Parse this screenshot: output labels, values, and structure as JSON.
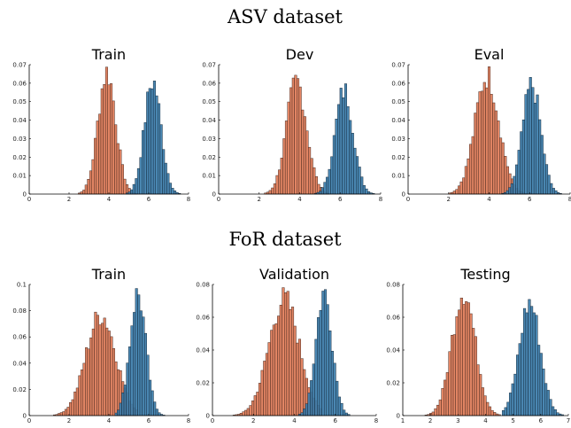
{
  "groups": [
    {
      "title": "ASV dataset"
    },
    {
      "title": "FoR dataset"
    }
  ],
  "colors": {
    "series_a": "#e07b57",
    "series_b": "#3b7dab"
  },
  "chart_data": [
    {
      "type": "bar",
      "group": "ASV dataset",
      "title": "Train",
      "xlim": [
        0,
        8
      ],
      "ylim": [
        0,
        0.07
      ],
      "xticks": [
        0,
        2,
        4,
        6,
        8
      ],
      "yticks": [
        0,
        0.01,
        0.02,
        0.03,
        0.04,
        0.05,
        0.06,
        0.07
      ],
      "series": [
        {
          "mean": 3.9,
          "sd": 0.45,
          "peak": 0.066,
          "range": [
            2.0,
            5.6
          ]
        },
        {
          "mean": 6.2,
          "sd": 0.42,
          "peak": 0.061,
          "range": [
            4.4,
            7.6
          ]
        }
      ]
    },
    {
      "type": "bar",
      "group": "ASV dataset",
      "title": "Dev",
      "xlim": [
        0,
        8
      ],
      "ylim": [
        0,
        0.07
      ],
      "xticks": [
        0,
        2,
        4,
        6,
        8
      ],
      "yticks": [
        0,
        0.01,
        0.02,
        0.03,
        0.04,
        0.05,
        0.06,
        0.07
      ],
      "series": [
        {
          "mean": 3.85,
          "sd": 0.5,
          "peak": 0.061,
          "range": [
            1.8,
            5.7
          ]
        },
        {
          "mean": 6.2,
          "sd": 0.45,
          "peak": 0.056,
          "range": [
            4.5,
            7.8
          ]
        }
      ]
    },
    {
      "type": "bar",
      "group": "ASV dataset",
      "title": "Eval",
      "xlim": [
        0,
        8
      ],
      "ylim": [
        0,
        0.07
      ],
      "xticks": [
        0,
        2,
        4,
        6,
        8
      ],
      "yticks": [
        0,
        0.01,
        0.02,
        0.03,
        0.04,
        0.05,
        0.06,
        0.07
      ],
      "series": [
        {
          "mean": 3.9,
          "sd": 0.6,
          "peak": 0.064,
          "range": [
            1.2,
            5.8
          ]
        },
        {
          "mean": 6.1,
          "sd": 0.45,
          "peak": 0.059,
          "range": [
            4.5,
            7.6
          ]
        }
      ]
    },
    {
      "type": "bar",
      "group": "FoR dataset",
      "title": "Train",
      "xlim": [
        0,
        8
      ],
      "ylim": [
        0,
        0.1
      ],
      "xticks": [
        0,
        2,
        4,
        6,
        8
      ],
      "yticks": [
        0,
        0.02,
        0.04,
        0.06,
        0.08,
        0.1
      ],
      "series": [
        {
          "mean": 3.6,
          "sd": 0.75,
          "peak": 0.077,
          "range": [
            0.3,
            5.4
          ]
        },
        {
          "mean": 5.45,
          "sd": 0.4,
          "peak": 0.093,
          "range": [
            4.3,
            7.2
          ]
        }
      ]
    },
    {
      "type": "bar",
      "group": "FoR dataset",
      "title": "Validation",
      "xlim": [
        0,
        8
      ],
      "ylim": [
        0,
        0.08
      ],
      "xticks": [
        0,
        2,
        4,
        6,
        8
      ],
      "yticks": [
        0,
        0.02,
        0.04,
        0.06,
        0.08
      ],
      "series": [
        {
          "mean": 3.5,
          "sd": 0.75,
          "peak": 0.071,
          "range": [
            0.2,
            5.3
          ]
        },
        {
          "mean": 5.45,
          "sd": 0.4,
          "peak": 0.075,
          "range": [
            4.2,
            7.2
          ]
        }
      ]
    },
    {
      "type": "bar",
      "group": "FoR dataset",
      "title": "Testing",
      "xlim": [
        1,
        7
      ],
      "ylim": [
        0,
        0.08
      ],
      "xticks": [
        1,
        2,
        3,
        4,
        5,
        6,
        7
      ],
      "yticks": [
        0,
        0.02,
        0.04,
        0.06,
        0.08
      ],
      "series": [
        {
          "mean": 3.2,
          "sd": 0.42,
          "peak": 0.076,
          "range": [
            1.2,
            4.6
          ]
        },
        {
          "mean": 5.6,
          "sd": 0.38,
          "peak": 0.069,
          "range": [
            4.6,
            6.9
          ]
        }
      ]
    }
  ]
}
